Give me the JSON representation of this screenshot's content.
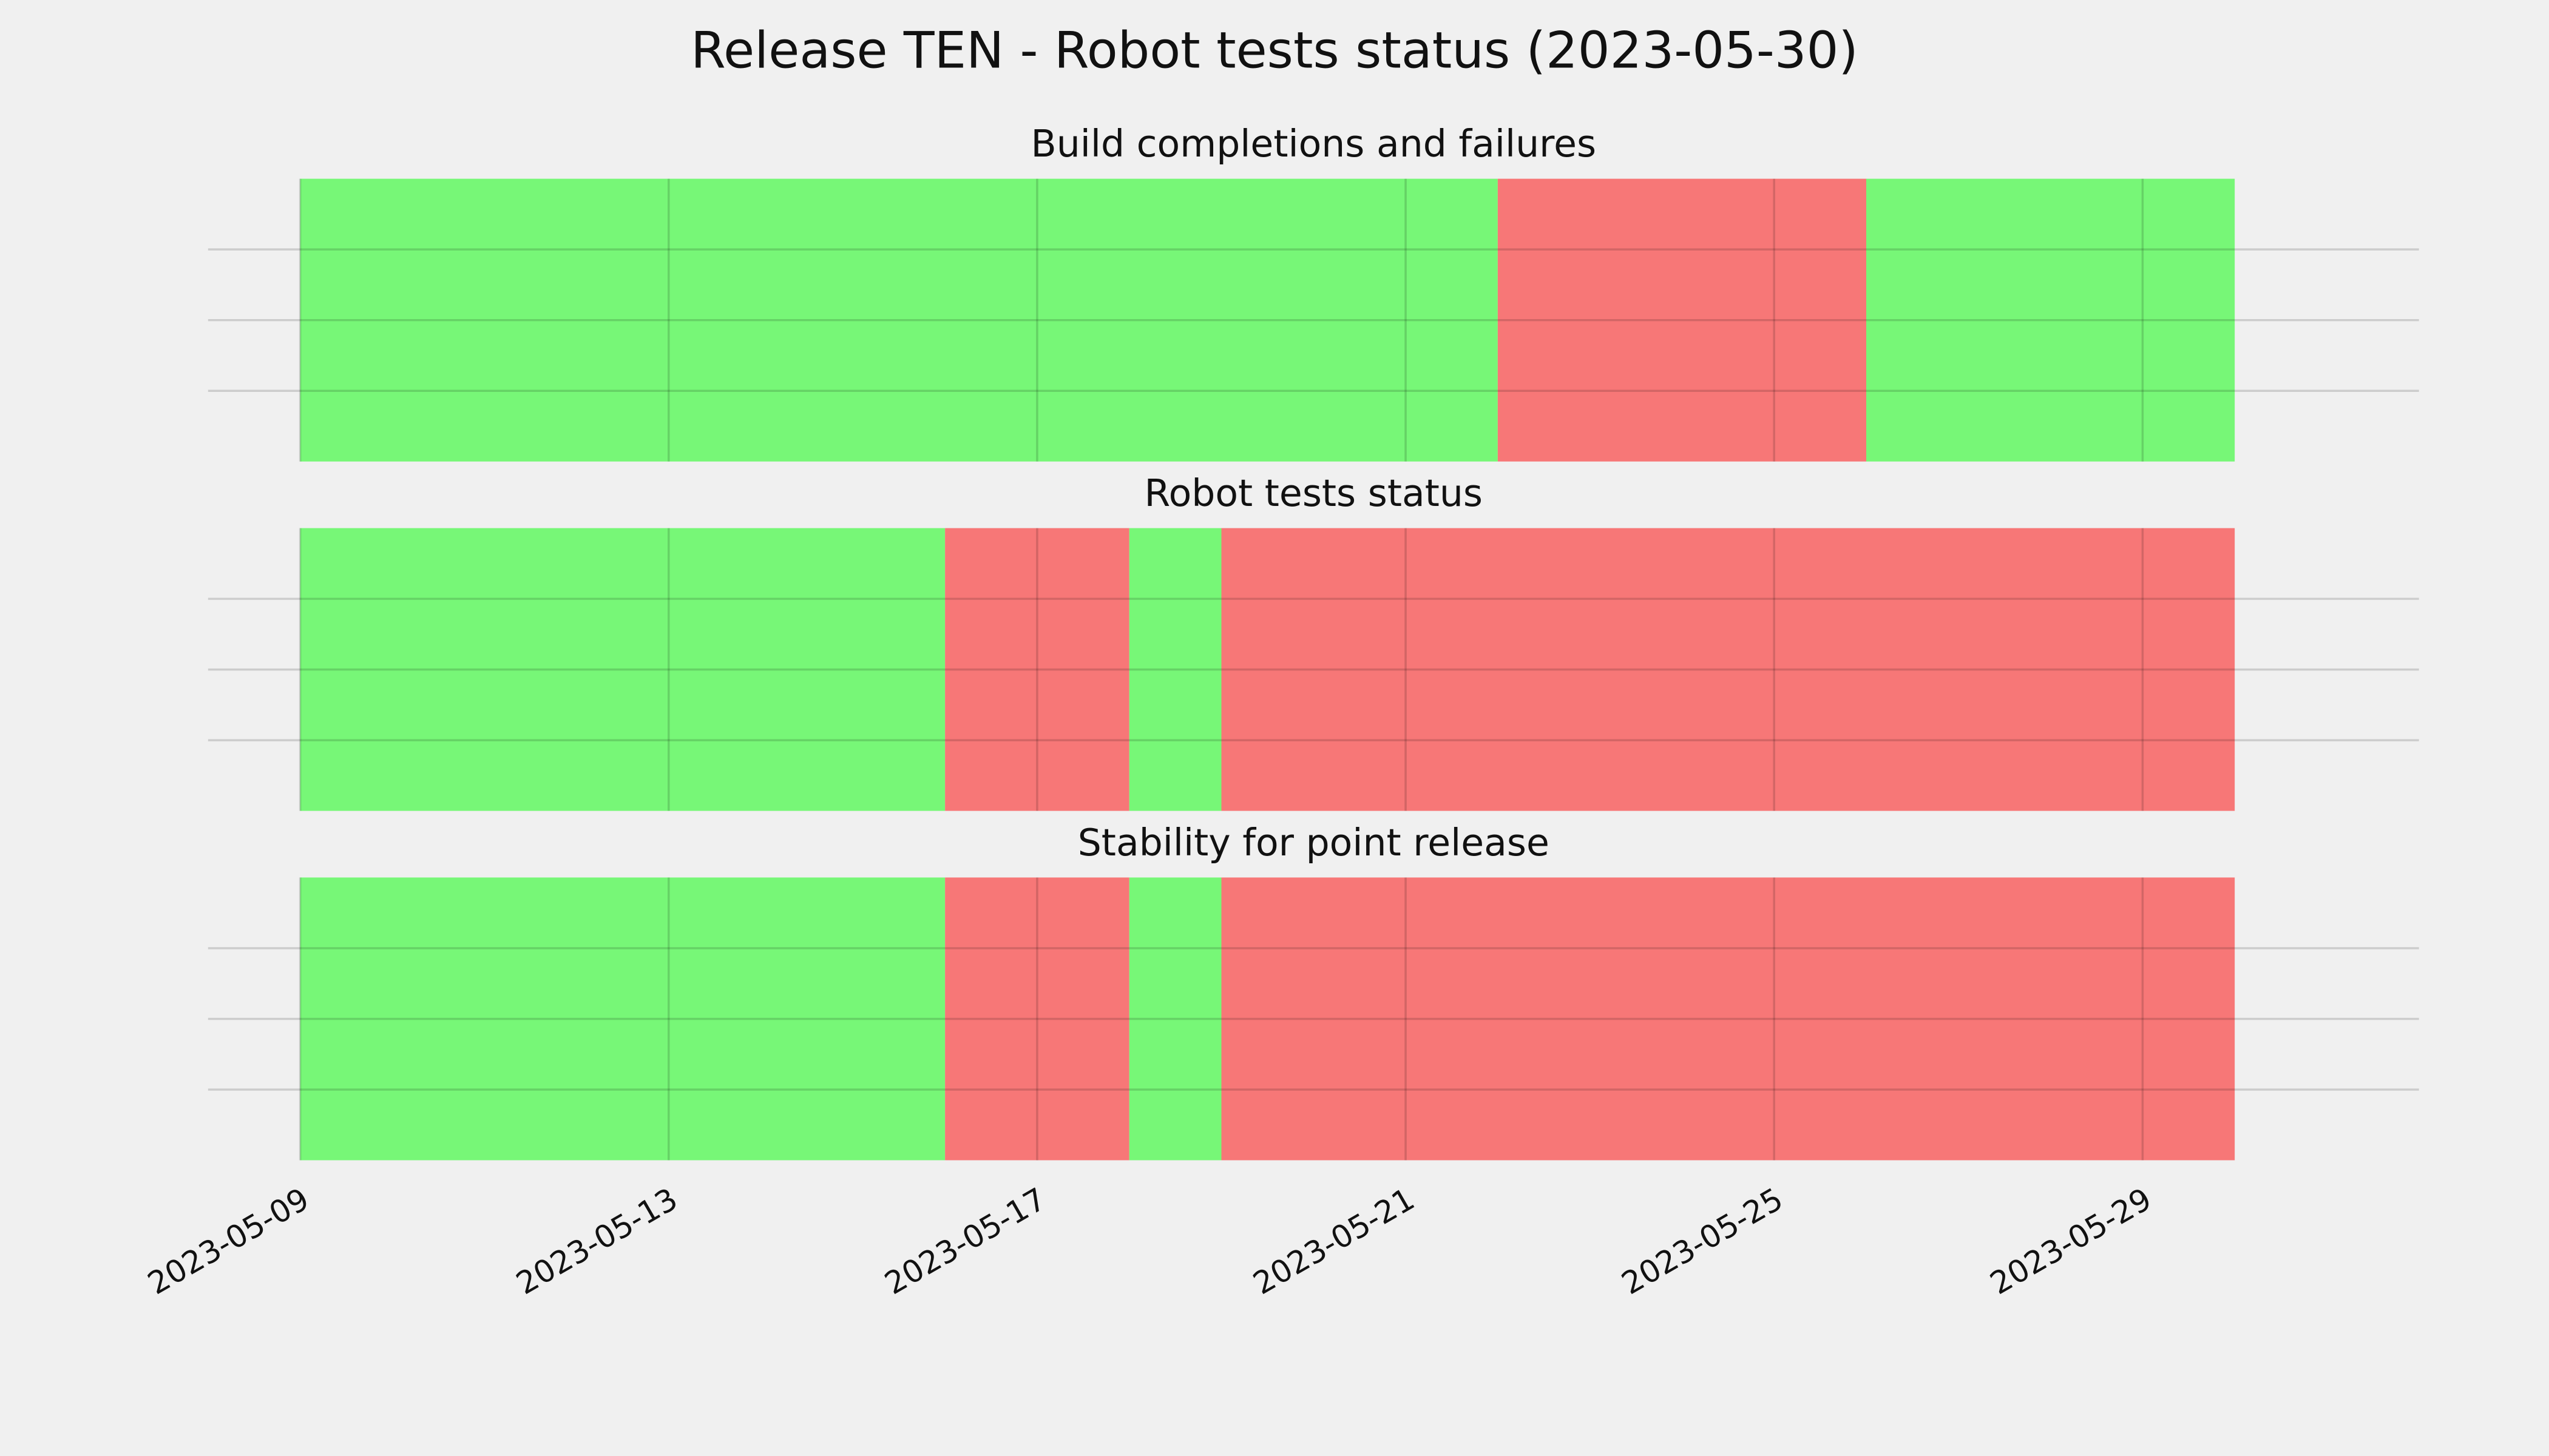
{
  "title": "Release TEN - Robot tests status (2023-05-30)",
  "chart_data": [
    {
      "type": "span",
      "title": "Build completions and failures",
      "segments": [
        {
          "start": "2023-05-09",
          "end": "2023-05-22",
          "color": "#77f777"
        },
        {
          "start": "2023-05-22",
          "end": "2023-05-26",
          "color": "#f77777"
        },
        {
          "start": "2023-05-26",
          "end": "2023-05-30",
          "color": "#77f777"
        }
      ],
      "xlim": [
        "2023-05-08",
        "2023-06-01"
      ],
      "xticks": [
        "2023-05-09",
        "2023-05-13",
        "2023-05-17",
        "2023-05-21",
        "2023-05-25",
        "2023-05-29"
      ],
      "ylim": [
        0,
        1
      ],
      "yticks": [
        0.25,
        0.5,
        0.75
      ],
      "grid": true
    },
    {
      "type": "span",
      "title": "Robot tests status",
      "segments": [
        {
          "start": "2023-05-09",
          "end": "2023-05-16",
          "color": "#77f777"
        },
        {
          "start": "2023-05-16",
          "end": "2023-05-18",
          "color": "#f77777"
        },
        {
          "start": "2023-05-18",
          "end": "2023-05-19",
          "color": "#77f777"
        },
        {
          "start": "2023-05-19",
          "end": "2023-05-30",
          "color": "#f77777"
        }
      ],
      "xlim": [
        "2023-05-08",
        "2023-06-01"
      ],
      "xticks": [
        "2023-05-09",
        "2023-05-13",
        "2023-05-17",
        "2023-05-21",
        "2023-05-25",
        "2023-05-29"
      ],
      "ylim": [
        0,
        1
      ],
      "yticks": [
        0.25,
        0.5,
        0.75
      ],
      "grid": true
    },
    {
      "type": "span",
      "title": "Stability for point release",
      "segments": [
        {
          "start": "2023-05-09",
          "end": "2023-05-16",
          "color": "#77f777"
        },
        {
          "start": "2023-05-16",
          "end": "2023-05-18",
          "color": "#f77777"
        },
        {
          "start": "2023-05-18",
          "end": "2023-05-19",
          "color": "#77f777"
        },
        {
          "start": "2023-05-19",
          "end": "2023-05-30",
          "color": "#f77777"
        }
      ],
      "xlim": [
        "2023-05-08",
        "2023-06-01"
      ],
      "xticks": [
        "2023-05-09",
        "2023-05-13",
        "2023-05-17",
        "2023-05-21",
        "2023-05-25",
        "2023-05-29"
      ],
      "ylim": [
        0,
        1
      ],
      "yticks": [
        0.25,
        0.5,
        0.75
      ],
      "grid": true
    }
  ]
}
